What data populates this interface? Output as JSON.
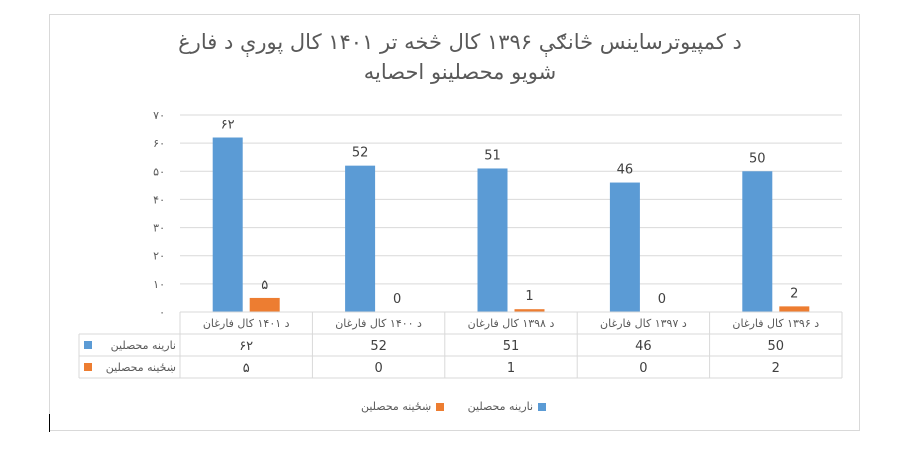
{
  "chart_data": {
    "type": "bar",
    "title_line1": "د کمپيوترساينس څانګې  ۱۳۹۶ کال څخه تر ۱۴۰۱ کال پورې د فارغ",
    "title_line2": "شويو محصلينو احصايه",
    "categories": [
      "د ۱۴۰۱ کال فارغان",
      "د ۱۴۰۰ کال فارغان",
      "د ۱۳۹۸ کال فارغان",
      "د ۱۳۹۷ کال فارغان",
      "د ۱۳۹۶ کال فارغان"
    ],
    "series": [
      {
        "name": "نارينه  محصلين",
        "color": "#5b9bd5",
        "values": [
          62,
          52,
          51,
          46,
          50
        ],
        "labels": [
          "۶۲",
          "52",
          "51",
          "46",
          "50"
        ]
      },
      {
        "name": "ښځينه محصلين",
        "color": "#ed7d31",
        "values": [
          5,
          0,
          1,
          0,
          2
        ],
        "labels": [
          "۵",
          "0",
          "1",
          "0",
          "2"
        ]
      }
    ],
    "ylim": [
      0,
      70
    ],
    "yticks": [
      0,
      10,
      20,
      30,
      40,
      50,
      60,
      70
    ],
    "ytick_labels": [
      "۰",
      "۱۰",
      "۲۰",
      "۳۰",
      "۴۰",
      "۵۰",
      "۶۰",
      "۷۰"
    ],
    "grid": true,
    "legend": "bottom",
    "data_table": true
  }
}
